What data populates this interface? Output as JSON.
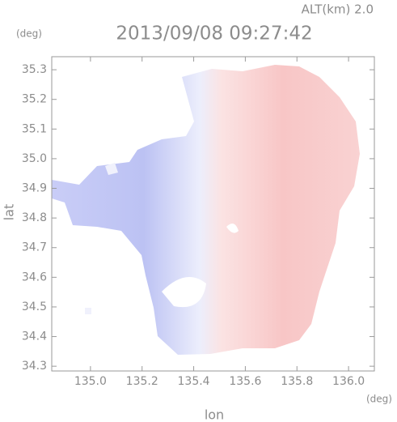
{
  "chart_data": {
    "type": "map",
    "title": "2013/09/08 09:27:42",
    "annotation": "ALT(km) 2.0",
    "x_label": "lon",
    "y_label": "lat",
    "x_unit": "(deg)",
    "y_unit": "(deg)",
    "xlim": [
      134.85,
      136.1
    ],
    "ylim": [
      34.284,
      35.344
    ],
    "xticks": [
      {
        "value": 135,
        "label": "135.0"
      },
      135.2,
      135.4,
      135.6,
      135.8,
      {
        "value": 136,
        "label": "136.0"
      }
    ],
    "yticks": [
      35.3,
      35.2,
      35.1,
      {
        "value": 35,
        "label": "35.0"
      },
      34.9,
      34.8,
      34.7,
      34.6,
      34.5,
      34.4,
      34.3
    ]
  }
}
